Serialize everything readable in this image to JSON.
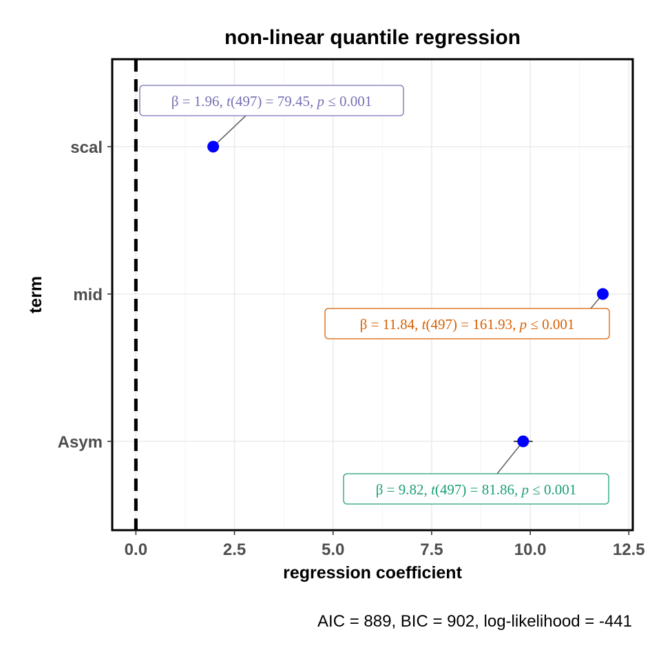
{
  "chart_data": {
    "type": "scatter",
    "title": "non-linear quantile regression",
    "xlabel": "regression coefficient",
    "ylabel": "term",
    "caption": "AIC = 889, BIC = 902, log-likelihood = -441",
    "xlim": [
      -0.6,
      12.6
    ],
    "x_ticks": [
      "0.0",
      "2.5",
      "5.0",
      "7.5",
      "10.0",
      "12.5"
    ],
    "x_tick_values": [
      0,
      2.5,
      5,
      7.5,
      10,
      12.5
    ],
    "reference_line": 0,
    "grid": true,
    "point_color": "#0000ff",
    "categories": [
      "scal",
      "mid",
      "Asym"
    ],
    "estimates": [
      {
        "term": "scal",
        "estimate": 1.96,
        "t_df": "497",
        "t_value": "79.45",
        "beta_text": "1.96",
        "p_text": "0.001",
        "label_color": "#7570b3",
        "ci": [
          1.91,
          2.01
        ]
      },
      {
        "term": "mid",
        "estimate": 11.84,
        "t_df": "497",
        "t_value": "161.93",
        "beta_text": "11.84",
        "p_text": "0.001",
        "label_color": "#d95f02",
        "ci": [
          11.77,
          11.91
        ]
      },
      {
        "term": "Asym",
        "estimate": 9.82,
        "t_df": "497",
        "t_value": "81.86",
        "beta_text": "9.82",
        "p_text": "0.001",
        "label_color": "#1b9e77",
        "ci": [
          9.58,
          10.06
        ]
      }
    ]
  }
}
